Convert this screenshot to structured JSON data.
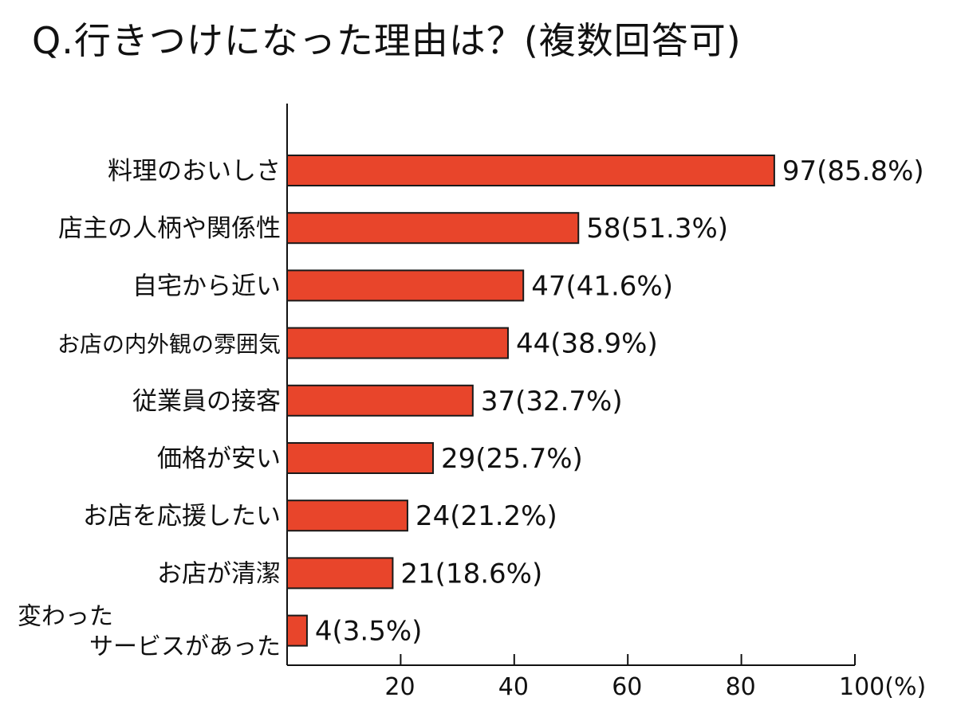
{
  "title": "Q.行きつけになった理由は？(複数回答可)",
  "chart_data": {
    "type": "bar",
    "orientation": "horizontal",
    "title": "Q.行きつけになった理由は？(複数回答可)",
    "categories": [
      [
        "料理のおいしさ"
      ],
      [
        "店主の人柄や関係性"
      ],
      [
        "自宅から近い"
      ],
      [
        "お店の内外観の雰囲気"
      ],
      [
        "従業員の接客"
      ],
      [
        "価格が安い"
      ],
      [
        "お店を応援したい"
      ],
      [
        "お店が清潔"
      ],
      [
        "変わった",
        "サービスがあった"
      ]
    ],
    "values": [
      85.8,
      51.3,
      41.6,
      38.9,
      32.7,
      25.7,
      21.2,
      18.6,
      3.5
    ],
    "counts": [
      97,
      58,
      47,
      44,
      37,
      29,
      24,
      21,
      4
    ],
    "data_labels": [
      "97(85.8%)",
      "58(51.3%)",
      "47(41.6%)",
      "44(38.9%)",
      "37(32.7%)",
      "29(25.7%)",
      "24(21.2%)",
      "21(18.6%)",
      "4(3.5%)"
    ],
    "xlim": [
      0,
      100
    ],
    "xticks": [
      20,
      40,
      60,
      80,
      100
    ],
    "xtick_labels": [
      "20",
      "40",
      "60",
      "80",
      "100(%)"
    ],
    "bar_color": "#e8452b",
    "bar_outline_color": "#1a1a1a",
    "grid": false,
    "legend": "none"
  }
}
